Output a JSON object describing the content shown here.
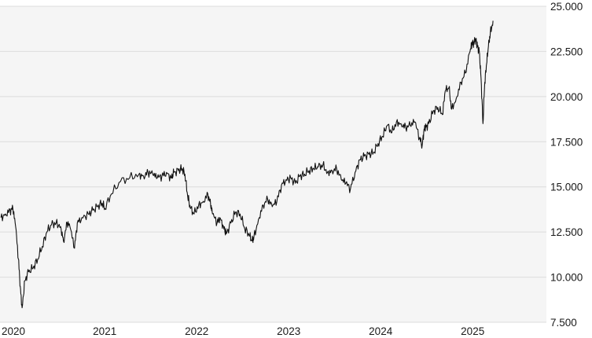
{
  "chart_data": {
    "type": "line",
    "title": "",
    "xlabel": "",
    "ylabel": "",
    "grid": "horizontal",
    "legend": "none",
    "ylim": [
      7500,
      25000
    ],
    "xlim": [
      2019.99,
      2025.93
    ],
    "y_ticks": [
      7500,
      10000,
      12500,
      15000,
      17500,
      20000,
      22500,
      25000
    ],
    "y_tick_labels": [
      "7.500",
      "10.000",
      "12.500",
      "15.000",
      "17.500",
      "20.000",
      "22.500",
      "25.000"
    ],
    "x_ticks": [
      2020,
      2021,
      2022,
      2023,
      2024,
      2025
    ],
    "x_tick_labels": [
      "2020",
      "2021",
      "2022",
      "2023",
      "2024",
      "2025"
    ],
    "colors": {
      "line": "#111111",
      "plot_background": "#f5f5f5",
      "grid": "#dcdcdc"
    },
    "series": [
      {
        "x": [
          2020.0,
          2020.05,
          2020.1,
          2020.13,
          2020.16,
          2020.19,
          2020.21,
          2020.23,
          2020.26,
          2020.3,
          2020.35,
          2020.4,
          2020.45,
          2020.5,
          2020.55,
          2020.6,
          2020.65,
          2020.68,
          2020.72,
          2020.75,
          2020.8,
          2020.83,
          2020.88,
          2020.95,
          2021.0,
          2021.05,
          2021.1,
          2021.13,
          2021.2,
          2021.3,
          2021.4,
          2021.5,
          2021.55,
          2021.6,
          2021.65,
          2021.7,
          2021.75,
          2021.8,
          2021.85,
          2021.88,
          2021.93,
          2021.97,
          2022.0,
          2022.03,
          2022.06,
          2022.1,
          2022.15,
          2022.2,
          2022.25,
          2022.28,
          2022.3,
          2022.35,
          2022.38,
          2022.42,
          2022.45,
          2022.5,
          2022.55,
          2022.6,
          2022.65,
          2022.7,
          2022.73,
          2022.75,
          2022.8,
          2022.85,
          2022.9,
          2022.95,
          2023.0,
          2023.05,
          2023.1,
          2023.15,
          2023.2,
          2023.25,
          2023.3,
          2023.35,
          2023.4,
          2023.45,
          2023.5,
          2023.55,
          2023.6,
          2023.65,
          2023.7,
          2023.75,
          2023.8,
          2023.85,
          2023.9,
          2023.95,
          2024.0,
          2024.05,
          2024.1,
          2024.15,
          2024.2,
          2024.25,
          2024.3,
          2024.35,
          2024.4,
          2024.45,
          2024.5,
          2024.55,
          2024.58,
          2024.6,
          2024.62,
          2024.65,
          2024.7,
          2024.75,
          2024.8,
          2024.83,
          2024.87,
          2024.9,
          2024.95,
          2025.0,
          2025.05,
          2025.1,
          2025.12,
          2025.14,
          2025.16,
          2025.18,
          2025.2,
          2025.22,
          2025.24,
          2025.26,
          2025.28,
          2025.3,
          2025.32,
          2025.35
        ],
        "y": [
          13300,
          13500,
          13700,
          13800,
          12800,
          11000,
          9500,
          8300,
          9800,
          10300,
          10500,
          11000,
          11700,
          12500,
          12900,
          13000,
          12800,
          12000,
          13000,
          12800,
          11600,
          13000,
          13300,
          13500,
          13700,
          13900,
          14100,
          13800,
          14600,
          15300,
          15500,
          15700,
          15600,
          15800,
          15700,
          15500,
          15600,
          15800,
          15500,
          15800,
          15900,
          16000,
          15700,
          14500,
          13800,
          13500,
          14000,
          14200,
          14600,
          14000,
          13500,
          13000,
          13300,
          12800,
          12400,
          13000,
          13600,
          13500,
          12700,
          12300,
          12000,
          12200,
          13200,
          14000,
          14300,
          13900,
          14200,
          15100,
          15400,
          15500,
          15200,
          15600,
          15700,
          15900,
          16000,
          16100,
          16200,
          15800,
          15900,
          16000,
          15400,
          15200,
          14900,
          15800,
          16500,
          16700,
          16800,
          16900,
          17400,
          17800,
          18400,
          18000,
          18600,
          18500,
          18300,
          18400,
          18600,
          17700,
          17300,
          18200,
          18300,
          18500,
          19200,
          19400,
          19000,
          20300,
          20500,
          19300,
          19900,
          20800,
          21300,
          22500,
          22900,
          23000,
          23200,
          22800,
          22500,
          21000,
          18500,
          20800,
          21800,
          22800,
          23500,
          24200
        ]
      }
    ]
  }
}
